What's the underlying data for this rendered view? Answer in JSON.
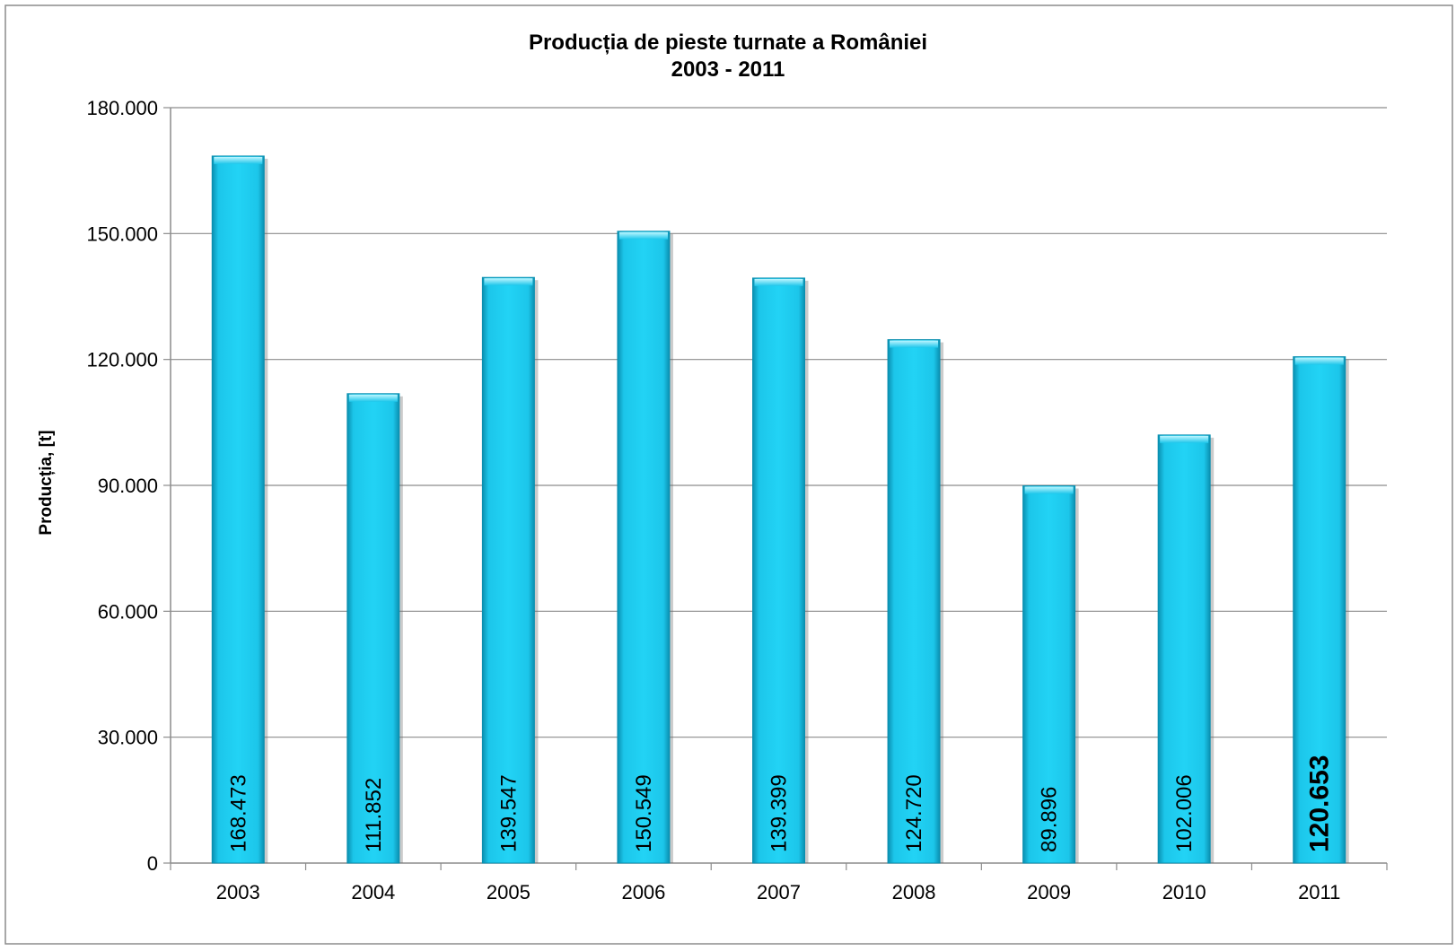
{
  "chart_data": {
    "type": "bar",
    "title": "Producția de pieste turnate a României",
    "subtitle": "2003 - 2011",
    "ylabel": "Producția, [t]",
    "xlabel": "",
    "categories": [
      "2003",
      "2004",
      "2005",
      "2006",
      "2007",
      "2008",
      "2009",
      "2010",
      "2011"
    ],
    "values": [
      168473,
      111852,
      139547,
      150549,
      139399,
      124720,
      89896,
      102006,
      120653
    ],
    "data_labels": [
      "168.473",
      "111.852",
      "139.547",
      "150.549",
      "139.399",
      "124.720",
      "89.896",
      "102.006",
      "120.653"
    ],
    "highlight_last_label": true,
    "ylim": [
      0,
      180000
    ],
    "yticks": [
      0,
      30000,
      60000,
      90000,
      120000,
      150000,
      180000
    ],
    "ytick_labels": [
      "0",
      "30.000",
      "60.000",
      "90.000",
      "120.000",
      "150.000",
      "180.000"
    ],
    "grid": true,
    "legend": "none",
    "colors": {
      "bar_light": "#7fe8fb",
      "bar": "#1cc6ea",
      "bar_dark": "#0a8fb0",
      "grid": "#8c8c8c",
      "text": "#000000"
    }
  }
}
